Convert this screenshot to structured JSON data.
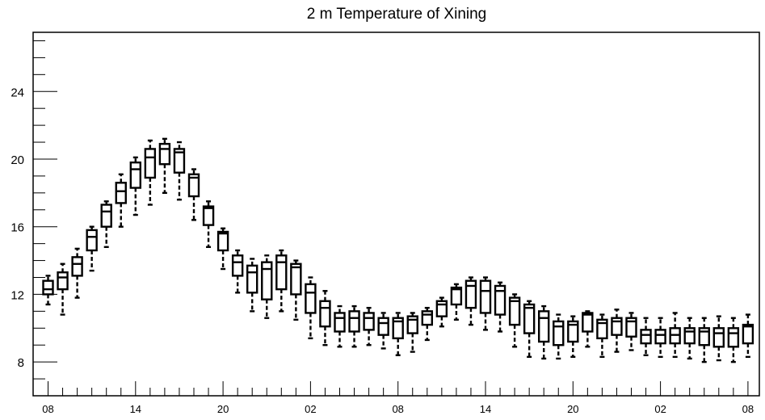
{
  "chart_data": {
    "type": "boxplot",
    "title": "2 m Temperature of Xining",
    "xlabel": "",
    "ylabel": "",
    "ylim": [
      6,
      27.5
    ],
    "y_ticks": [
      8,
      12,
      16,
      20,
      24
    ],
    "x_tick_labels": [
      "08",
      "14",
      "20",
      "02",
      "08",
      "14",
      "20",
      "02",
      "08"
    ],
    "x_tick_steps": [
      0,
      6,
      12,
      18,
      24,
      30,
      36,
      42,
      48
    ],
    "step_hours": 1,
    "grid": false,
    "boxes": [
      {
        "step": 0,
        "min": 11.4,
        "q1": 12.0,
        "median": 12.3,
        "q3": 12.8,
        "max": 13.1
      },
      {
        "step": 1,
        "min": 10.8,
        "q1": 12.3,
        "median": 13.0,
        "q3": 13.3,
        "max": 13.8
      },
      {
        "step": 2,
        "min": 11.8,
        "q1": 13.1,
        "median": 13.8,
        "q3": 14.2,
        "max": 14.7
      },
      {
        "step": 3,
        "min": 13.4,
        "q1": 14.6,
        "median": 15.4,
        "q3": 15.8,
        "max": 16.0
      },
      {
        "step": 4,
        "min": 14.8,
        "q1": 16.0,
        "median": 16.9,
        "q3": 17.3,
        "max": 17.5
      },
      {
        "step": 5,
        "min": 16.0,
        "q1": 17.4,
        "median": 18.1,
        "q3": 18.6,
        "max": 19.1
      },
      {
        "step": 6,
        "min": 16.7,
        "q1": 18.3,
        "median": 19.4,
        "q3": 19.8,
        "max": 20.1
      },
      {
        "step": 7,
        "min": 17.3,
        "q1": 18.9,
        "median": 20.1,
        "q3": 20.6,
        "max": 21.1
      },
      {
        "step": 8,
        "min": 18.0,
        "q1": 19.7,
        "median": 20.6,
        "q3": 20.9,
        "max": 21.2
      },
      {
        "step": 9,
        "min": 17.6,
        "q1": 19.2,
        "median": 20.4,
        "q3": 20.6,
        "max": 21.0
      },
      {
        "step": 10,
        "min": 16.4,
        "q1": 17.8,
        "median": 18.9,
        "q3": 19.1,
        "max": 19.4
      },
      {
        "step": 11,
        "min": 14.8,
        "q1": 16.1,
        "median": 17.1,
        "q3": 17.2,
        "max": 17.5
      },
      {
        "step": 12,
        "min": 13.5,
        "q1": 14.6,
        "median": 15.6,
        "q3": 15.7,
        "max": 15.9
      },
      {
        "step": 13,
        "min": 12.1,
        "q1": 13.1,
        "median": 13.9,
        "q3": 14.3,
        "max": 14.6
      },
      {
        "step": 14,
        "min": 11.0,
        "q1": 12.1,
        "median": 13.3,
        "q3": 13.7,
        "max": 14.1
      },
      {
        "step": 15,
        "min": 10.6,
        "q1": 11.7,
        "median": 13.5,
        "q3": 13.9,
        "max": 14.3
      },
      {
        "step": 16,
        "min": 11.0,
        "q1": 12.3,
        "median": 13.9,
        "q3": 14.3,
        "max": 14.6
      },
      {
        "step": 17,
        "min": 10.5,
        "q1": 12.0,
        "median": 13.6,
        "q3": 13.8,
        "max": 14.0
      },
      {
        "step": 18,
        "min": 9.4,
        "q1": 10.9,
        "median": 12.1,
        "q3": 12.6,
        "max": 13.0
      },
      {
        "step": 19,
        "min": 9.0,
        "q1": 10.1,
        "median": 11.2,
        "q3": 11.6,
        "max": 12.2
      },
      {
        "step": 20,
        "min": 8.9,
        "q1": 9.8,
        "median": 10.6,
        "q3": 10.9,
        "max": 11.3
      },
      {
        "step": 21,
        "min": 8.9,
        "q1": 9.8,
        "median": 10.6,
        "q3": 11.0,
        "max": 11.3
      },
      {
        "step": 22,
        "min": 9.0,
        "q1": 9.9,
        "median": 10.6,
        "q3": 10.9,
        "max": 11.2
      },
      {
        "step": 23,
        "min": 8.8,
        "q1": 9.6,
        "median": 10.3,
        "q3": 10.6,
        "max": 10.9
      },
      {
        "step": 24,
        "min": 8.4,
        "q1": 9.4,
        "median": 10.4,
        "q3": 10.6,
        "max": 10.9
      },
      {
        "step": 25,
        "min": 8.6,
        "q1": 9.7,
        "median": 10.5,
        "q3": 10.7,
        "max": 10.9
      },
      {
        "step": 26,
        "min": 9.3,
        "q1": 10.2,
        "median": 10.8,
        "q3": 11.0,
        "max": 11.2
      },
      {
        "step": 27,
        "min": 10.1,
        "q1": 10.7,
        "median": 11.4,
        "q3": 11.6,
        "max": 11.8
      },
      {
        "step": 28,
        "min": 10.5,
        "q1": 11.4,
        "median": 12.3,
        "q3": 12.4,
        "max": 12.6
      },
      {
        "step": 29,
        "min": 10.2,
        "q1": 11.2,
        "median": 12.5,
        "q3": 12.8,
        "max": 13.0
      },
      {
        "step": 30,
        "min": 9.9,
        "q1": 10.9,
        "median": 12.2,
        "q3": 12.8,
        "max": 13.0
      },
      {
        "step": 31,
        "min": 9.8,
        "q1": 10.8,
        "median": 12.2,
        "q3": 12.5,
        "max": 12.7
      },
      {
        "step": 32,
        "min": 8.9,
        "q1": 10.2,
        "median": 11.6,
        "q3": 11.8,
        "max": 12.0
      },
      {
        "step": 33,
        "min": 8.3,
        "q1": 9.7,
        "median": 11.2,
        "q3": 11.4,
        "max": 11.6
      },
      {
        "step": 34,
        "min": 8.2,
        "q1": 9.2,
        "median": 10.6,
        "q3": 11.0,
        "max": 11.3
      },
      {
        "step": 35,
        "min": 8.2,
        "q1": 9.0,
        "median": 10.1,
        "q3": 10.4,
        "max": 10.8
      },
      {
        "step": 36,
        "min": 8.3,
        "q1": 9.2,
        "median": 10.2,
        "q3": 10.4,
        "max": 10.7
      },
      {
        "step": 37,
        "min": 8.9,
        "q1": 9.8,
        "median": 10.8,
        "q3": 10.9,
        "max": 11.0
      },
      {
        "step": 38,
        "min": 8.3,
        "q1": 9.4,
        "median": 10.3,
        "q3": 10.5,
        "max": 10.8
      },
      {
        "step": 39,
        "min": 8.6,
        "q1": 9.6,
        "median": 10.4,
        "q3": 10.6,
        "max": 11.1
      },
      {
        "step": 40,
        "min": 8.7,
        "q1": 9.5,
        "median": 10.4,
        "q3": 10.6,
        "max": 10.9
      },
      {
        "step": 41,
        "min": 8.4,
        "q1": 9.1,
        "median": 9.6,
        "q3": 9.9,
        "max": 10.6
      },
      {
        "step": 42,
        "min": 8.3,
        "q1": 9.1,
        "median": 9.6,
        "q3": 9.9,
        "max": 10.6
      },
      {
        "step": 43,
        "min": 8.3,
        "q1": 9.1,
        "median": 9.6,
        "q3": 10.0,
        "max": 10.9
      },
      {
        "step": 44,
        "min": 8.2,
        "q1": 9.1,
        "median": 9.8,
        "q3": 10.0,
        "max": 10.6
      },
      {
        "step": 45,
        "min": 8.0,
        "q1": 9.0,
        "median": 9.8,
        "q3": 10.0,
        "max": 10.6
      },
      {
        "step": 46,
        "min": 8.1,
        "q1": 8.9,
        "median": 9.7,
        "q3": 10.0,
        "max": 10.7
      },
      {
        "step": 47,
        "min": 8.0,
        "q1": 8.9,
        "median": 9.7,
        "q3": 10.0,
        "max": 10.6
      },
      {
        "step": 48,
        "min": 8.3,
        "q1": 9.1,
        "median": 10.1,
        "q3": 10.2,
        "max": 10.8
      }
    ]
  }
}
